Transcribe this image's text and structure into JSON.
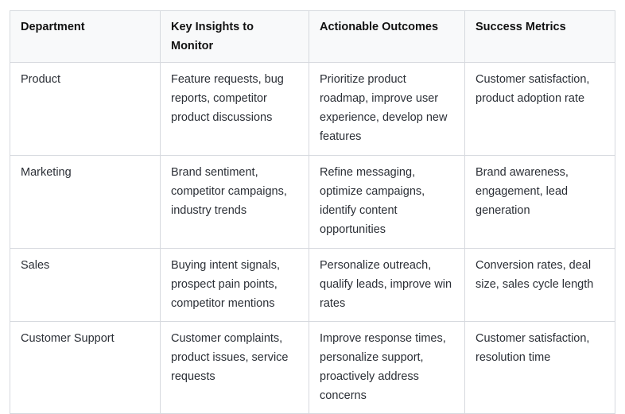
{
  "table": {
    "headers": [
      {
        "id": "department",
        "label": "Department"
      },
      {
        "id": "key-insights",
        "label": "Key Insights to Monitor"
      },
      {
        "id": "actionable-outcomes",
        "label": "Actionable Outcomes"
      },
      {
        "id": "success-metrics",
        "label": "Success Metrics"
      }
    ],
    "rows": [
      {
        "department": "Product",
        "key_insights": "Feature requests, bug reports, competitor product discussions",
        "actionable_outcomes": "Prioritize product roadmap, improve user experience, develop new features",
        "success_metrics": "Customer satisfaction, product adoption rate"
      },
      {
        "department": "Marketing",
        "key_insights": "Brand sentiment, competitor campaigns, industry trends",
        "actionable_outcomes": "Refine messaging, optimize campaigns, identify content opportunities",
        "success_metrics": "Brand awareness, engagement, lead generation"
      },
      {
        "department": "Sales",
        "key_insights": "Buying intent signals, prospect pain points, competitor mentions",
        "actionable_outcomes": "Personalize outreach, qualify leads, improve win rates",
        "success_metrics": "Conversion rates, deal size, sales cycle length"
      },
      {
        "department": "Customer Support",
        "key_insights": "Customer complaints, product issues, service requests",
        "actionable_outcomes": "Improve response times, personalize support, proactively address concerns",
        "success_metrics": "Customer satisfaction, resolution time"
      }
    ],
    "colors": {
      "border": "#d6d9de",
      "header_bg": "#f8f9fa",
      "body_bg": "#ffffff",
      "header_text": "#111111",
      "body_text": "#2b2f36"
    }
  }
}
